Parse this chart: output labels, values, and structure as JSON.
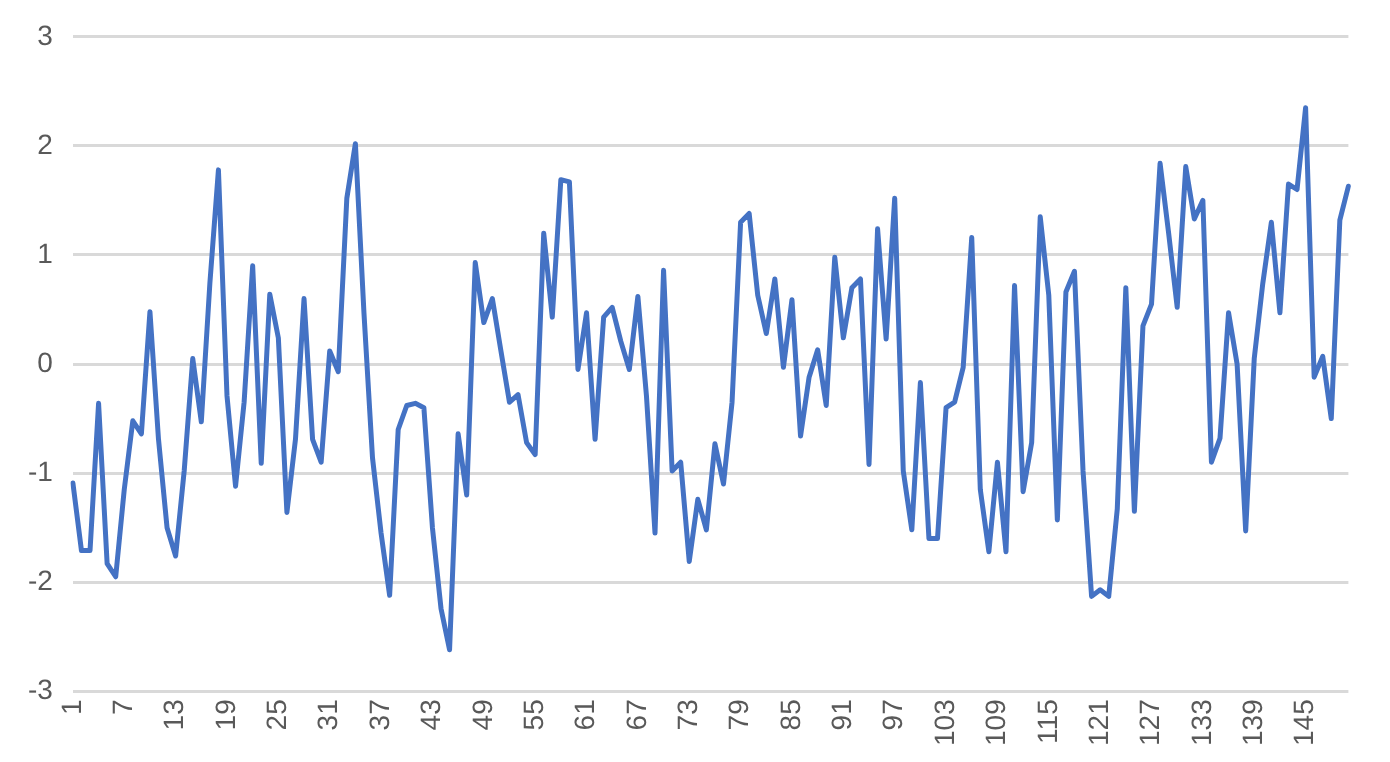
{
  "chart_data": {
    "type": "line",
    "categories": [
      "1",
      null,
      null,
      null,
      null,
      null,
      "7",
      null,
      null,
      null,
      null,
      null,
      "13",
      null,
      null,
      null,
      null,
      null,
      "19",
      null,
      null,
      null,
      null,
      null,
      "25",
      null,
      null,
      null,
      null,
      null,
      "31",
      null,
      null,
      null,
      null,
      null,
      "37",
      null,
      null,
      null,
      null,
      null,
      "43",
      null,
      null,
      null,
      null,
      null,
      "49",
      null,
      null,
      null,
      null,
      null,
      "55",
      null,
      null,
      null,
      null,
      null,
      "61",
      null,
      null,
      null,
      null,
      null,
      "67",
      null,
      null,
      null,
      null,
      null,
      "73",
      null,
      null,
      null,
      null,
      null,
      "79",
      null,
      null,
      null,
      null,
      null,
      "85",
      null,
      null,
      null,
      null,
      null,
      "91",
      null,
      null,
      null,
      null,
      null,
      "97",
      null,
      null,
      null,
      null,
      null,
      "103",
      null,
      null,
      null,
      null,
      null,
      "109",
      null,
      null,
      null,
      null,
      null,
      "115",
      null,
      null,
      null,
      null,
      null,
      "121",
      null,
      null,
      null,
      null,
      null,
      "127",
      null,
      null,
      null,
      null,
      null,
      "133",
      null,
      null,
      null,
      null,
      null,
      "139",
      null,
      null,
      null,
      null,
      null,
      "145",
      null,
      null,
      null,
      null,
      null
    ],
    "series": [
      {
        "color": "#4472c4",
        "values": [
          -1.09,
          -1.71,
          -1.71,
          -0.36,
          -1.83,
          -1.95,
          -1.15,
          -0.52,
          -0.64,
          0.48,
          -0.69,
          -1.5,
          -1.76,
          -0.98,
          0.05,
          -0.53,
          0.74,
          1.78,
          -0.29,
          -1.12,
          -0.35,
          0.9,
          -0.91,
          0.64,
          0.24,
          -1.36,
          -0.69,
          0.6,
          -0.69,
          -0.9,
          0.12,
          -0.07,
          1.52,
          2.02,
          0.47,
          -0.86,
          -1.55,
          -2.12,
          -0.6,
          -0.38,
          -0.36,
          -0.4,
          -1.5,
          -2.24,
          -2.62,
          -0.64,
          -1.2,
          0.93,
          0.38,
          0.6,
          0.12,
          -0.35,
          -0.28,
          -0.72,
          -0.83,
          1.2,
          0.43,
          1.69,
          1.67,
          -0.05,
          0.47,
          -0.69,
          0.43,
          0.52,
          0.21,
          -0.05,
          0.62,
          -0.29,
          -1.55,
          0.86,
          -0.98,
          -0.9,
          -1.81,
          -1.24,
          -1.52,
          -0.73,
          -1.1,
          -0.35,
          1.3,
          1.38,
          0.63,
          0.28,
          0.78,
          -0.03,
          0.59,
          -0.66,
          -0.12,
          0.13,
          -0.38,
          0.98,
          0.24,
          0.7,
          0.78,
          -0.92,
          1.24,
          0.23,
          1.52,
          -0.98,
          -1.52,
          -0.17,
          -1.6,
          -1.6,
          -0.4,
          -0.35,
          -0.03,
          1.16,
          -1.15,
          -1.72,
          -0.9,
          -1.72,
          0.72,
          -1.17,
          -0.72,
          1.35,
          0.63,
          -1.43,
          0.66,
          0.85,
          -0.98,
          -2.13,
          -2.07,
          -2.13,
          -1.33,
          0.7,
          -1.35,
          0.35,
          0.55,
          1.84,
          1.2,
          0.52,
          1.81,
          1.33,
          1.5,
          -0.9,
          -0.68,
          0.47,
          0,
          -1.53,
          0.05,
          0.74,
          1.3,
          0.47,
          1.65,
          1.6,
          2.35,
          -0.12,
          0.07,
          -0.5,
          1.32,
          1.63
        ]
      }
    ],
    "ylim": [
      -3,
      3
    ],
    "yticks": [
      -3,
      -2,
      -1,
      0,
      1,
      2,
      3
    ],
    "grid": "y",
    "marker": "none",
    "line_style": "solid"
  }
}
